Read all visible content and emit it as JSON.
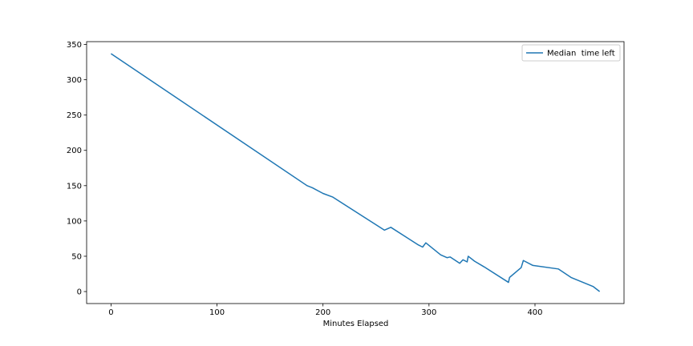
{
  "chart_data": {
    "type": "line",
    "title": "",
    "xlabel": "Minutes Elapsed",
    "ylabel": "",
    "xlim": [
      -23,
      484
    ],
    "ylim": [
      -17,
      354
    ],
    "x_ticks": [
      0,
      100,
      200,
      300,
      400
    ],
    "y_ticks": [
      0,
      50,
      100,
      150,
      200,
      250,
      300,
      350
    ],
    "grid": false,
    "legend": {
      "position": "top-right"
    },
    "colors": {
      "series": "#1f77b4",
      "axes": "#000000"
    },
    "series": [
      {
        "name": "Median  time left",
        "x": [
          0,
          185,
          190,
          200,
          209,
          258,
          264,
          290,
          294,
          297,
          311,
          317,
          320,
          329,
          332,
          336,
          337,
          343,
          352,
          375,
          376,
          387,
          389,
          398,
          422,
          434,
          455,
          461
        ],
        "y": [
          337,
          150,
          147,
          139,
          134,
          87,
          91,
          66,
          63,
          69,
          52,
          48,
          49,
          40,
          45,
          42,
          50,
          43,
          35,
          13,
          20,
          34,
          44,
          37,
          32,
          20,
          7,
          0
        ]
      }
    ]
  }
}
